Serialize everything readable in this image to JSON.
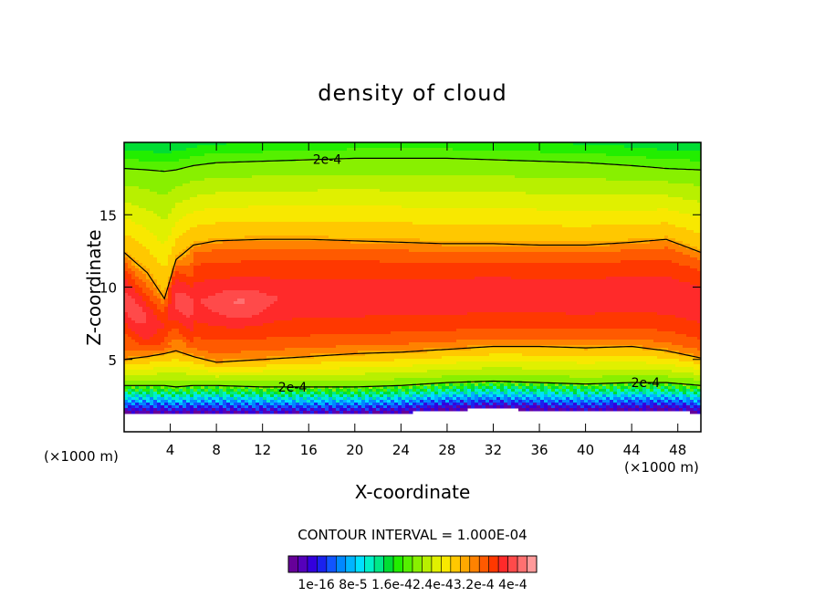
{
  "chart_data": {
    "type": "heatmap",
    "title": "density of cloud",
    "xlabel": "X-coordinate",
    "ylabel": "Z-coordinate",
    "x_unit_label": "(×1000 m)",
    "xlim": [
      0,
      50
    ],
    "ylim": [
      0,
      20
    ],
    "x_ticks": [
      4,
      8,
      12,
      16,
      20,
      24,
      28,
      32,
      36,
      40,
      44,
      48
    ],
    "y_ticks": [
      5,
      10,
      15
    ],
    "contour_interval_label": "CONTOUR INTERVAL = 1.000E-04",
    "contour_labels": [
      "2e-4",
      "2e-4",
      "2e-4"
    ],
    "colorbar": {
      "labels_text": "1e-16 8e-5 1.6e-42.4e-43.2e-4 4e-4",
      "colors": [
        "#660099",
        "#5500bb",
        "#3300dd",
        "#1a22ee",
        "#1155ff",
        "#0088ff",
        "#00b4ff",
        "#00e0ff",
        "#00f0c8",
        "#00e888",
        "#00dd33",
        "#22ee00",
        "#55f000",
        "#88f000",
        "#b8f000",
        "#e0f000",
        "#f8e800",
        "#ffc800",
        "#ffa800",
        "#ff8200",
        "#ff5a00",
        "#ff3800",
        "#ff2a2a",
        "#ff4a4a",
        "#ff7070",
        "#ff9a9a"
      ]
    },
    "profile_description": {
      "x": [
        0,
        2,
        3.5,
        4.5,
        6,
        8,
        12,
        16,
        20,
        24,
        28,
        32,
        36,
        40,
        44,
        47,
        50
      ],
      "cloud_top_2e4": [
        18.2,
        18.1,
        18.0,
        18.1,
        18.4,
        18.6,
        18.7,
        18.8,
        18.9,
        18.9,
        18.9,
        18.8,
        18.7,
        18.6,
        18.4,
        18.2,
        18.1
      ],
      "upper_contour": [
        12.4,
        11.0,
        9.2,
        11.9,
        12.9,
        13.2,
        13.3,
        13.3,
        13.2,
        13.1,
        13.0,
        13.0,
        12.9,
        12.9,
        13.1,
        13.3,
        12.4
      ],
      "lower_contour": [
        5.0,
        5.2,
        5.4,
        5.6,
        5.2,
        4.8,
        5.0,
        5.2,
        5.4,
        5.5,
        5.7,
        5.9,
        5.9,
        5.8,
        5.9,
        5.6,
        5.1
      ],
      "cloud_base_2e4": [
        3.2,
        3.2,
        3.2,
        3.1,
        3.2,
        3.2,
        3.1,
        3.1,
        3.1,
        3.2,
        3.4,
        3.5,
        3.4,
        3.3,
        3.4,
        3.4,
        3.2
      ]
    }
  }
}
